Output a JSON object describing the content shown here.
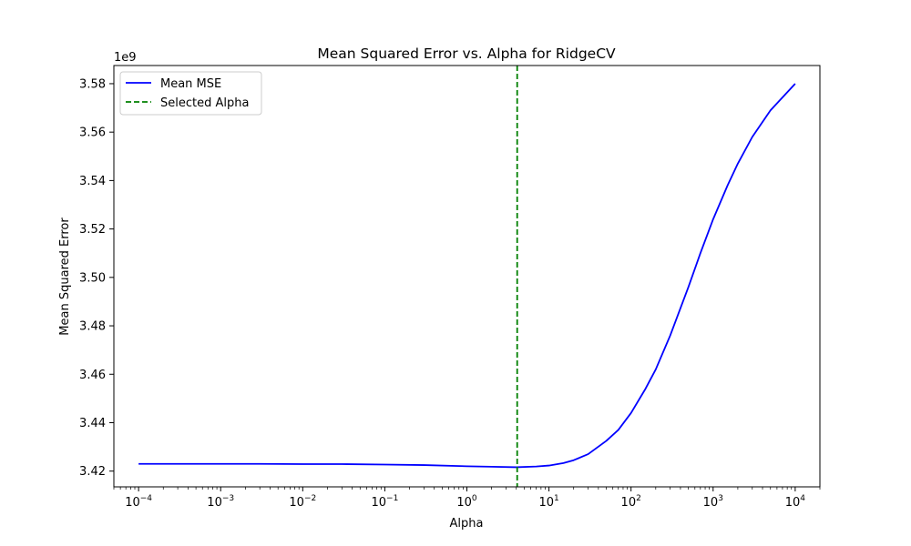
{
  "chart_data": {
    "type": "line",
    "title": "Mean Squared Error vs. Alpha for RidgeCV",
    "xlabel": "Alpha",
    "ylabel": "Mean Squared Error",
    "x_scale": "log",
    "xlim": [
      5e-05,
      20000
    ],
    "ylim": [
      3.4135,
      3.5875
    ],
    "y_offset_label": "1e9",
    "y_scale_factor": 1000000000,
    "x_ticks": [
      {
        "value": 0.0001,
        "base": "10",
        "exp": "−4"
      },
      {
        "value": 0.001,
        "base": "10",
        "exp": "−3"
      },
      {
        "value": 0.01,
        "base": "10",
        "exp": "−2"
      },
      {
        "value": 0.1,
        "base": "10",
        "exp": "−1"
      },
      {
        "value": 1,
        "base": "10",
        "exp": "0"
      },
      {
        "value": 10,
        "base": "10",
        "exp": "1"
      },
      {
        "value": 100,
        "base": "10",
        "exp": "2"
      },
      {
        "value": 1000,
        "base": "10",
        "exp": "3"
      },
      {
        "value": 10000,
        "base": "10",
        "exp": "4"
      }
    ],
    "y_ticks": [
      {
        "value": 3.42,
        "label": "3.42"
      },
      {
        "value": 3.44,
        "label": "3.44"
      },
      {
        "value": 3.46,
        "label": "3.46"
      },
      {
        "value": 3.48,
        "label": "3.48"
      },
      {
        "value": 3.5,
        "label": "3.50"
      },
      {
        "value": 3.52,
        "label": "3.52"
      },
      {
        "value": 3.54,
        "label": "3.54"
      },
      {
        "value": 3.56,
        "label": "3.56"
      },
      {
        "value": 3.58,
        "label": "3.58"
      }
    ],
    "series": [
      {
        "name": "Mean MSE",
        "color": "#0000ff",
        "style": "solid",
        "x": [
          0.0001,
          0.0003,
          0.001,
          0.003,
          0.01,
          0.03,
          0.1,
          0.3,
          1,
          2,
          4,
          7,
          10,
          15,
          20,
          30,
          50,
          70,
          100,
          150,
          200,
          300,
          500,
          700,
          1000,
          1500,
          2000,
          3000,
          5000,
          10000
        ],
        "y": [
          3.423,
          3.423,
          3.423,
          3.423,
          3.4229,
          3.4229,
          3.4227,
          3.4225,
          3.422,
          3.4218,
          3.4216,
          3.4219,
          3.4223,
          3.4233,
          3.4245,
          3.427,
          3.4325,
          3.437,
          3.444,
          3.454,
          3.462,
          3.476,
          3.496,
          3.51,
          3.524,
          3.538,
          3.547,
          3.558,
          3.569,
          3.58
        ]
      }
    ],
    "vlines": [
      {
        "name": "Selected Alpha",
        "x": 4.1,
        "color": "#008000",
        "style": "dashed"
      }
    ],
    "legend": {
      "placement": "upper-left",
      "entries": [
        {
          "label": "Mean MSE",
          "color": "#0000ff",
          "style": "solid"
        },
        {
          "label": "Selected Alpha",
          "color": "#008000",
          "style": "dashed"
        }
      ]
    },
    "grid": false
  }
}
